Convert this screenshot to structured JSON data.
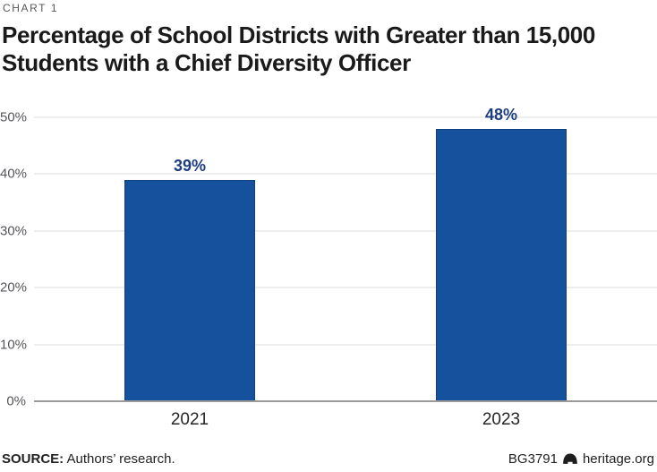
{
  "header": {
    "kicker": "CHART 1",
    "title": "Percentage of School Districts with Greater than 15,000 Students with a Chief Diversity Officer",
    "title_line1": "Percentage of School Districts with Greater than 15,000",
    "title_line2": "Students with a Chief Diversity Officer"
  },
  "chart_data": {
    "type": "bar",
    "title": "Percentage of School Districts with Greater than 15,000 Students with a Chief Diversity Officer",
    "categories": [
      "2021",
      "2023"
    ],
    "values": [
      39,
      48
    ],
    "value_labels": [
      "39%",
      "48%"
    ],
    "xlabel": "",
    "ylabel": "",
    "ylim": [
      0,
      50
    ],
    "yticks": [
      0,
      10,
      20,
      30,
      40,
      50
    ],
    "ytick_labels": [
      "0%",
      "10%",
      "20%",
      "30%",
      "40%",
      "50%"
    ],
    "grid": true,
    "legend": false,
    "colors": {
      "bar_fill": "#15519d",
      "bar_border": "#0d4181",
      "value_label": "#1c3d7e",
      "gridline": "#eeeeee",
      "baseline": "#9a9a9a",
      "tick_text": "#55565a"
    }
  },
  "footer": {
    "source_label": "SOURCE:",
    "source_text": " Authors’ research.",
    "doc_id": "BG3791",
    "bell_icon": "liberty-bell",
    "site": "heritage.org"
  }
}
